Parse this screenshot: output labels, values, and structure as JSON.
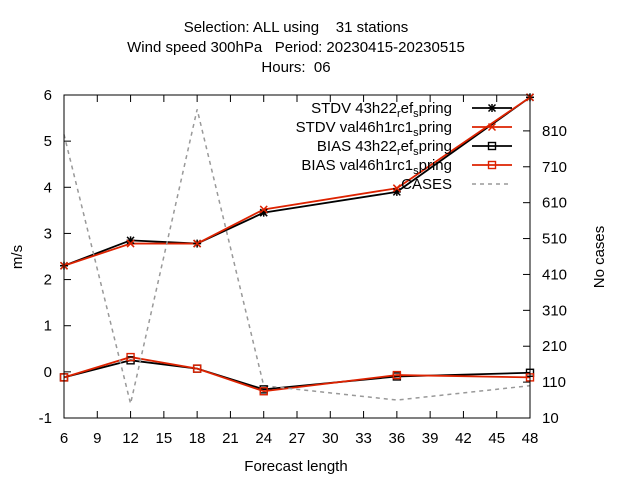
{
  "chart_data": {
    "type": "line",
    "title_lines": [
      "Selection: ALL using    31 stations",
      "Wind speed 300hPa   Period: 20230415-20230515",
      "Hours:  06"
    ],
    "xlabel": "Forecast length",
    "ylabel": "m/s",
    "y2label": "No cases",
    "x_ticks": [
      6,
      9,
      12,
      15,
      18,
      21,
      24,
      27,
      30,
      33,
      36,
      39,
      42,
      45,
      48
    ],
    "xlim": [
      6,
      48
    ],
    "y_ticks": [
      -1,
      0,
      1,
      2,
      3,
      4,
      5,
      6
    ],
    "ylim": [
      -1,
      6
    ],
    "y2_ticks": [
      10,
      110,
      210,
      310,
      410,
      510,
      610,
      710,
      810
    ],
    "y2lim": [
      10,
      910
    ],
    "series": [
      {
        "name": "STDV 43h22_ref_spring",
        "label_main": "STDV 43h22",
        "label_parts": [
          "r",
          "ef",
          "s",
          "pring"
        ],
        "axis": "y",
        "color": "#000000",
        "marker": "star",
        "x": [
          6,
          12,
          18,
          24,
          36,
          48
        ],
        "values": [
          2.3,
          2.85,
          2.78,
          3.45,
          3.9,
          5.95
        ]
      },
      {
        "name": "STDV val46h1rc1_spring",
        "label_main": "STDV val46h1rc1",
        "label_parts": [
          "",
          "",
          "s",
          "pring"
        ],
        "axis": "y",
        "color": "#dd2200",
        "marker": "x",
        "x": [
          6,
          12,
          18,
          24,
          36,
          48
        ],
        "values": [
          2.3,
          2.78,
          2.78,
          3.52,
          3.98,
          5.95
        ]
      },
      {
        "name": "BIAS 43h22_ref_spring",
        "label_main": "BIAS 43h22",
        "label_parts": [
          "r",
          "ef",
          "s",
          "pring"
        ],
        "axis": "y",
        "color": "#000000",
        "marker": "square",
        "x": [
          6,
          12,
          18,
          24,
          36,
          48
        ],
        "values": [
          -0.12,
          0.25,
          0.07,
          -0.38,
          -0.1,
          -0.02
        ]
      },
      {
        "name": "BIAS val46h1rc1_spring",
        "label_main": "BIAS val46h1rc1",
        "label_parts": [
          "",
          "",
          "s",
          "pring"
        ],
        "axis": "y",
        "color": "#dd2200",
        "marker": "square",
        "x": [
          6,
          12,
          18,
          24,
          36,
          48
        ],
        "values": [
          -0.12,
          0.32,
          0.07,
          -0.42,
          -0.07,
          -0.12
        ]
      },
      {
        "name": "CASES",
        "label_main": "CASES",
        "label_parts": [
          "",
          "",
          "",
          ""
        ],
        "axis": "y2",
        "color": "#999999",
        "marker": "none",
        "dashed": true,
        "x": [
          6,
          12,
          18,
          24,
          36,
          48
        ],
        "values": [
          800,
          50,
          870,
          100,
          60,
          100
        ]
      }
    ],
    "legend_position": "top-right",
    "grid": false
  }
}
